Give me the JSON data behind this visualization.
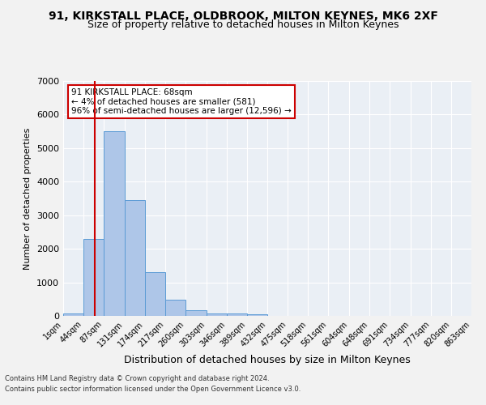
{
  "title": "91, KIRKSTALL PLACE, OLDBROOK, MILTON KEYNES, MK6 2XF",
  "subtitle": "Size of property relative to detached houses in Milton Keynes",
  "xlabel": "Distribution of detached houses by size in Milton Keynes",
  "ylabel": "Number of detached properties",
  "footnote1": "Contains HM Land Registry data © Crown copyright and database right 2024.",
  "footnote2": "Contains public sector information licensed under the Open Government Licence v3.0.",
  "bin_edges": [
    1,
    44,
    87,
    131,
    174,
    217,
    260,
    303,
    346,
    389,
    432,
    475,
    518,
    561,
    604,
    648,
    691,
    734,
    777,
    820,
    863
  ],
  "bar_heights": [
    80,
    2300,
    5500,
    3450,
    1300,
    480,
    170,
    80,
    70,
    60,
    0,
    0,
    0,
    0,
    0,
    0,
    0,
    0,
    0,
    0
  ],
  "bar_color": "#aec6e8",
  "bar_edge_color": "#5b9bd5",
  "vline_x": 68,
  "vline_color": "#cc0000",
  "annotation_title": "91 KIRKSTALL PLACE: 68sqm",
  "annotation_line2": "← 4% of detached houses are smaller (581)",
  "annotation_line3": "96% of semi-detached houses are larger (12,596) →",
  "annotation_box_color": "#ffffff",
  "annotation_box_edge": "#cc0000",
  "ylim": [
    0,
    7000
  ],
  "yticks": [
    0,
    1000,
    2000,
    3000,
    4000,
    5000,
    6000,
    7000
  ],
  "background_color": "#eaeff5",
  "grid_color": "#ffffff",
  "title_fontsize": 10,
  "subtitle_fontsize": 9,
  "tick_label_fontsize": 7,
  "ylabel_fontsize": 8,
  "xlabel_fontsize": 9
}
